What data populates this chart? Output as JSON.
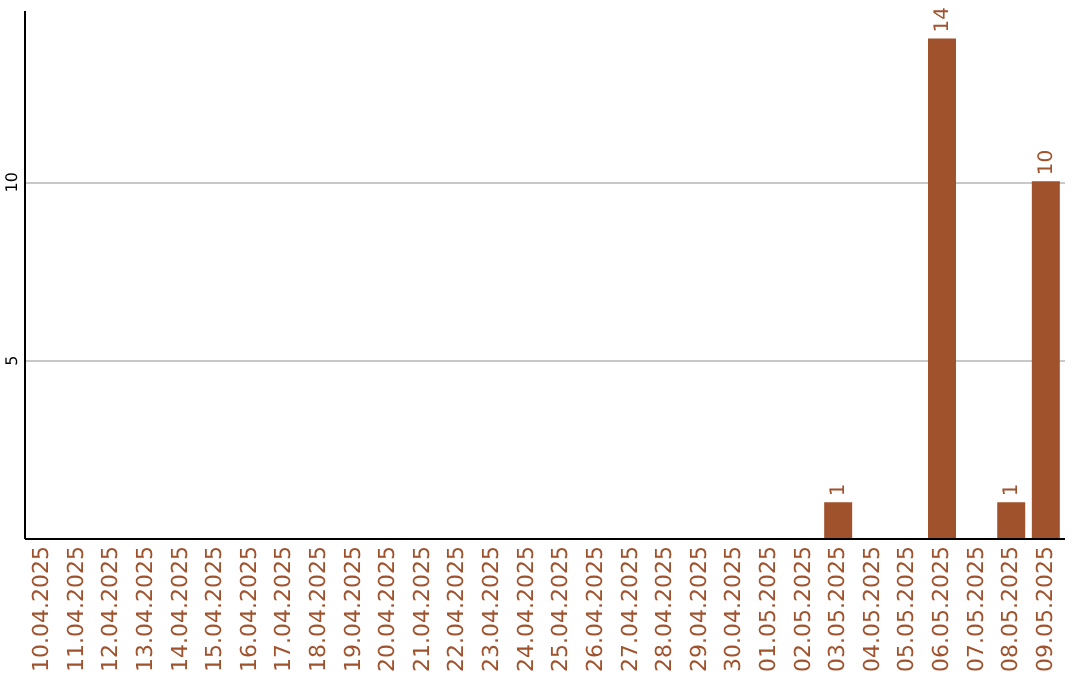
{
  "chart_data": {
    "type": "bar",
    "categories": [
      "10.04.2025",
      "11.04.2025",
      "12.04.2025",
      "13.04.2025",
      "14.04.2025",
      "15.04.2025",
      "16.04.2025",
      "17.04.2025",
      "18.04.2025",
      "19.04.2025",
      "20.04.2025",
      "21.04.2025",
      "22.04.2025",
      "23.04.2025",
      "24.04.2025",
      "25.04.2025",
      "26.04.2025",
      "27.04.2025",
      "28.04.2025",
      "29.04.2025",
      "30.04.2025",
      "01.05.2025",
      "02.05.2025",
      "03.05.2025",
      "04.05.2025",
      "05.05.2025",
      "06.05.2025",
      "07.05.2025",
      "08.05.2025",
      "09.05.2025"
    ],
    "values": [
      0,
      0,
      0,
      0,
      0,
      0,
      0,
      0,
      0,
      0,
      0,
      0,
      0,
      0,
      0,
      0,
      0,
      0,
      0,
      0,
      0,
      0,
      0,
      1,
      0,
      0,
      14,
      0,
      1,
      10
    ],
    "value_labels": [
      null,
      null,
      null,
      null,
      null,
      null,
      null,
      null,
      null,
      null,
      null,
      null,
      null,
      null,
      null,
      null,
      null,
      null,
      null,
      null,
      null,
      null,
      null,
      "1",
      null,
      null,
      "14",
      null,
      "1",
      "10"
    ],
    "color": "#a0522d",
    "ylim": [
      0,
      14.8
    ],
    "yticks": [
      5,
      10
    ],
    "grid": "y"
  }
}
